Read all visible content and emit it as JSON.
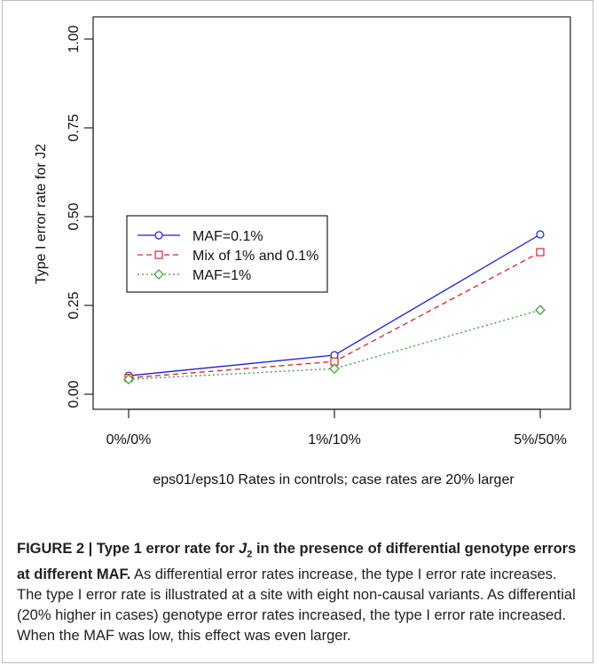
{
  "chart_data": {
    "type": "line",
    "title": "",
    "xlabel": "eps01/eps10 Rates in controls; case rates are 20% larger",
    "ylabel": "Type I error rate for J2",
    "categories": [
      "0%/0%",
      "1%/10%",
      "5%/50%"
    ],
    "ylim": [
      0,
      1
    ],
    "yticks": [
      "0.00",
      "0.25",
      "0.50",
      "0.75",
      "1.00"
    ],
    "grid": false,
    "legend": "left-middle",
    "series": [
      {
        "name": "MAF=0.1%",
        "values": [
          0.052,
          0.11,
          0.45
        ],
        "color": "#1c1cd6",
        "marker": "circle",
        "dash": "solid"
      },
      {
        "name": "Mix of 1% and 0.1%",
        "values": [
          0.046,
          0.092,
          0.4
        ],
        "color": "#d0262f",
        "marker": "square",
        "dash": "dashed"
      },
      {
        "name": "MAF=1%",
        "values": [
          0.042,
          0.072,
          0.237
        ],
        "color": "#3a9a3a",
        "marker": "diamond",
        "dash": "dotted"
      }
    ]
  },
  "caption": {
    "title_prefix": "FIGURE 2 | Type 1 error rate for ",
    "title_var": "J",
    "title_sub": "2",
    "title_suffix": " in the presence of differential genotype errors at different MAF.",
    "body": " As differential error rates increase, the type I error rate increases. The type I error rate is illustrated at a site with eight non-causal variants. As differential (20% higher in cases) genotype error rates increased, the type I error rate increased. When the MAF was low, this effect was even larger."
  }
}
